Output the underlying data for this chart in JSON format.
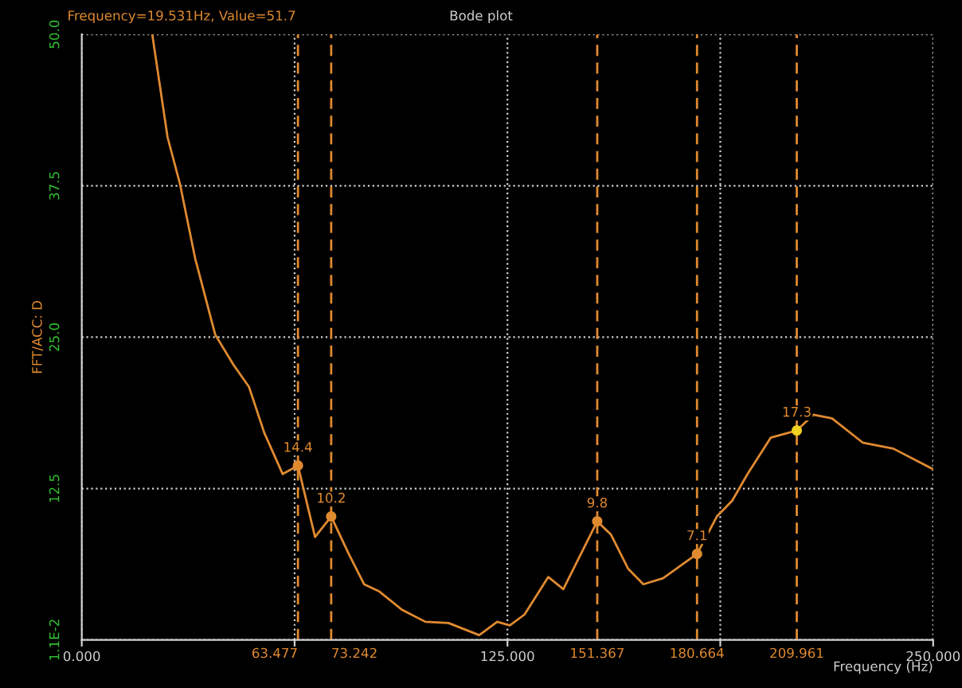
{
  "chart_data": {
    "type": "line",
    "title": "Bode plot",
    "xlabel": "Frequency (Hz)",
    "ylabel": "FFT/ACC: D",
    "annotations": [
      "Frequency=19.531Hz, Value=51.7",
      {
        "text": "14.4",
        "x": 63.477,
        "y": 14.4
      },
      {
        "text": "10.2",
        "x": 73.242,
        "y": 10.2
      },
      {
        "text": "9.8",
        "x": 151.367,
        "y": 9.8
      },
      {
        "text": "7.1",
        "x": 180.664,
        "y": 7.1
      },
      {
        "text": "17.3",
        "x": 209.961,
        "y": 17.3
      }
    ],
    "series": [
      {
        "type": "line",
        "color": "#e08a30",
        "x": [
          20.7,
          25.2,
          28.8,
          33.3,
          39.2,
          44.6,
          49.1,
          53.6,
          59.0,
          63.477,
          68.5,
          73.242,
          78.4,
          82.9,
          87.4,
          94.0,
          100.9,
          107.7,
          116.7,
          122.0,
          125.7,
          130.0,
          137.0,
          141.4,
          151.367,
          155.4,
          160.4,
          164.9,
          170.7,
          180.664,
          186.5,
          191.0,
          195.5,
          202.3,
          209.961,
          214.9,
          220.3,
          229.3,
          238.3,
          250.0
        ],
        "values": [
          50.0,
          41.5,
          37.7,
          31.5,
          25.2,
          22.7,
          20.9,
          17.1,
          13.7,
          14.4,
          8.5,
          10.2,
          7.1,
          4.6,
          4.0,
          2.5,
          1.5,
          1.4,
          0.4,
          1.5,
          1.2,
          2.1,
          5.2,
          4.2,
          9.8,
          8.7,
          5.9,
          4.6,
          5.1,
          7.1,
          10.2,
          11.5,
          13.7,
          16.7,
          17.3,
          18.6,
          18.3,
          16.3,
          15.8,
          14.1
        ]
      },
      {
        "type": "scatter",
        "marker": "circle",
        "x": [
          63.477,
          73.242,
          151.367,
          180.664,
          209.961
        ],
        "values": [
          14.4,
          10.2,
          9.8,
          7.1,
          17.3
        ],
        "colors": [
          "#e08a30",
          "#e08a30",
          "#e08a30",
          "#e08a30",
          "#f0d020"
        ]
      }
    ],
    "ref_lines": [
      {
        "axis": "x",
        "value": 63.477,
        "label": "63.477",
        "color": "#e08a30",
        "line_style": "dashed"
      },
      {
        "axis": "x",
        "value": 73.242,
        "label": "73.242",
        "color": "#e08a30",
        "line_style": "dashed"
      },
      {
        "axis": "x",
        "value": 151.367,
        "label": "151.367",
        "color": "#e08a30",
        "line_style": "dashed"
      },
      {
        "axis": "x",
        "value": 180.664,
        "label": "180.664",
        "color": "#e08a30",
        "line_style": "dashed"
      },
      {
        "axis": "x",
        "value": 209.961,
        "label": "209.961",
        "color": "#e08a30",
        "line_style": "dashed"
      }
    ],
    "xlim": [
      0,
      250
    ],
    "xticks": [
      {
        "value": 0,
        "label": "0.000"
      },
      {
        "value": 62.5,
        "label": null
      },
      {
        "value": 125,
        "label": "125.000"
      },
      {
        "value": 187.5,
        "label": null
      },
      {
        "value": 250,
        "label": "250.000"
      }
    ],
    "ylim": [
      0.011,
      50
    ],
    "yticks": [
      {
        "value": 0.011,
        "label": "1.1E-2"
      },
      12.5,
      {
        "value": 25,
        "label": "25.0"
      },
      37.5,
      {
        "value": 50,
        "label": "50.0"
      }
    ],
    "grid": true,
    "line_style": "solid",
    "legend": false
  }
}
